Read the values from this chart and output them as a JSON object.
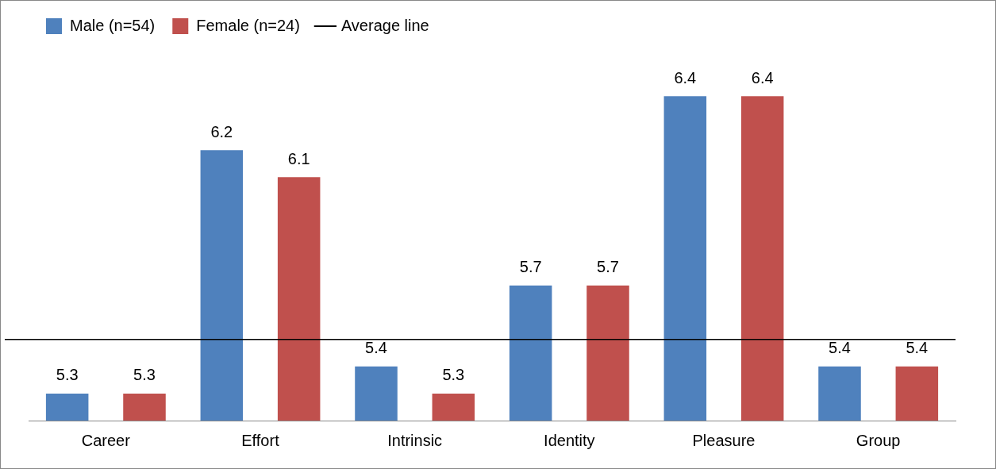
{
  "chart_data": {
    "type": "bar",
    "categories": [
      "Career",
      "Effort",
      "Intrinsic",
      "Identity",
      "Pleasure",
      "Group"
    ],
    "series": [
      {
        "name": "Male (n=54)",
        "color": "#4f81bd",
        "values": [
          5.3,
          6.2,
          5.4,
          5.7,
          6.4,
          5.4
        ]
      },
      {
        "name": "Female (n=24)",
        "color": "#c0504d",
        "values": [
          5.3,
          6.1,
          5.3,
          5.7,
          6.4,
          5.4
        ]
      }
    ],
    "data_labels": true,
    "grid": false,
    "legend": "top left",
    "tick_labels": "x",
    "ref_lines": [
      {
        "axis": "y",
        "value": 5.5,
        "label": "Average line",
        "color": "#000000"
      }
    ]
  }
}
